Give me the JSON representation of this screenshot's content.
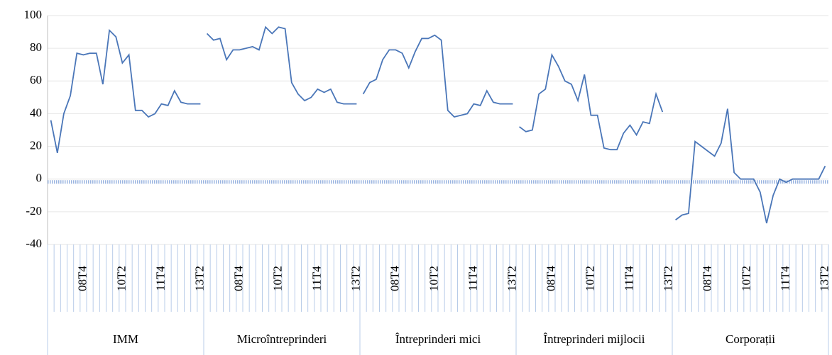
{
  "chart_data": {
    "type": "line",
    "color": "#4a76b8",
    "ylim": [
      -40,
      100
    ],
    "yticks": [
      -40,
      -20,
      0,
      20,
      40,
      60,
      80,
      100
    ],
    "grid": true,
    "groups": [
      {
        "label": "IMM",
        "categories": [
          null,
          null,
          null,
          null,
          null,
          "08T4",
          null,
          null,
          null,
          null,
          null,
          "10T2",
          null,
          null,
          null,
          null,
          null,
          "11T4",
          null,
          null,
          null,
          null,
          null,
          "13T2"
        ],
        "values": [
          36,
          16,
          40,
          51,
          77,
          76,
          77,
          77,
          58,
          91,
          87,
          71,
          76,
          42,
          42,
          38,
          40,
          46,
          45,
          54,
          47,
          46,
          46,
          46
        ]
      },
      {
        "label": "Microîntreprinderi",
        "categories": [
          null,
          null,
          null,
          null,
          null,
          "08T4",
          null,
          null,
          null,
          null,
          null,
          "10T2",
          null,
          null,
          null,
          null,
          null,
          "11T4",
          null,
          null,
          null,
          null,
          null,
          "13T2"
        ],
        "values": [
          89,
          85,
          86,
          73,
          79,
          79,
          80,
          81,
          79,
          93,
          89,
          93,
          92,
          59,
          52,
          48,
          50,
          55,
          53,
          55,
          47,
          46,
          46,
          46
        ]
      },
      {
        "label": "Întreprinderi mici",
        "categories": [
          null,
          null,
          null,
          null,
          null,
          "08T4",
          null,
          null,
          null,
          null,
          null,
          "10T2",
          null,
          null,
          null,
          null,
          null,
          "11T4",
          null,
          null,
          null,
          null,
          null,
          "13T2"
        ],
        "values": [
          52,
          59,
          61,
          73,
          79,
          79,
          77,
          68,
          78,
          86,
          86,
          88,
          85,
          42,
          38,
          39,
          40,
          46,
          45,
          54,
          47,
          46,
          46,
          46
        ]
      },
      {
        "label": "Întreprinderi mijlocii",
        "categories": [
          null,
          null,
          null,
          null,
          null,
          "08T4",
          null,
          null,
          null,
          null,
          null,
          "10T2",
          null,
          null,
          null,
          null,
          null,
          "11T4",
          null,
          null,
          null,
          null,
          null,
          "13T2"
        ],
        "values": [
          32,
          29,
          30,
          52,
          55,
          76,
          69,
          60,
          58,
          48,
          64,
          39,
          39,
          19,
          18,
          18,
          28,
          33,
          27,
          35,
          34,
          52,
          41,
          null
        ]
      },
      {
        "label": "Corporații",
        "categories": [
          null,
          null,
          null,
          null,
          null,
          "08T4",
          null,
          null,
          null,
          null,
          null,
          "10T2",
          null,
          null,
          null,
          null,
          null,
          "11T4",
          null,
          null,
          null,
          null,
          null,
          "13T2"
        ],
        "values": [
          -25,
          -22,
          -21,
          23,
          20,
          17,
          14,
          22,
          43,
          4,
          0,
          0,
          0,
          -8,
          -27,
          -10,
          0,
          -2,
          0,
          0,
          0,
          0,
          0,
          8
        ]
      }
    ]
  }
}
